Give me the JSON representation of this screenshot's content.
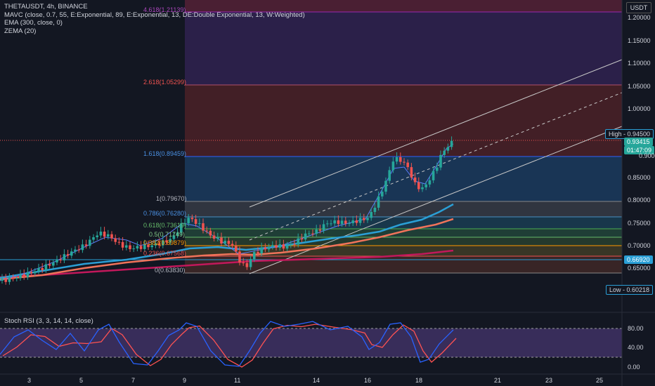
{
  "legend": {
    "symbol": "THETAUSDT, 4h, BINANCE",
    "mavc": "MAVC (close, 0.7, 55, E:Exponential, 89, E:Exponential, 13, DE:Double Exponential, 13, W:Weighted)",
    "ema": "EMA (300, close, 0)",
    "zema": "ZEMA (20)"
  },
  "stoch_legend": "Stoch RSI (3, 3, 14, 14, close)",
  "currency": "USDT",
  "price_axis": [
    "1.20000",
    "1.15000",
    "1.10000",
    "1.05000",
    "1.00000",
    "0.85000",
    "0.80000",
    "0.75000",
    "0.70000",
    "0.65000"
  ],
  "stoch_axis": [
    "80.00",
    "40.00",
    "0.00"
  ],
  "time_axis": [
    "3",
    "5",
    "7",
    "9",
    "11",
    "14",
    "16",
    "18",
    "21",
    "23",
    "25"
  ],
  "tags": {
    "high": "High - 0.94500",
    "last": "0.93415",
    "countdown": "01:47:09",
    "partial": "0.90000",
    "ema_val": "0.66920",
    "low": "Low - 0.60218"
  },
  "fib": {
    "f4236": "4.618(1.21139)",
    "f2618": "2.618(1.05299)",
    "f1618": "1.618(0.89459)",
    "f1": "1(0.79670)",
    "f786": "0.786(0.76280)",
    "f618": "0.618(0.73619)",
    "f5": "0.5(0.71749)",
    "f382": "0.382(0.69879)",
    "f236": "0.236(0.67568)",
    "f0": "0(0.63830)"
  },
  "colors": {
    "background": "#131722",
    "up": "#26a69a",
    "down": "#ef5350",
    "ema_line": "#2a9fd6",
    "zema_line": "#f0735a",
    "ema300": "#c2185b",
    "stoch_k": "#2962ff",
    "stoch_d": "#ff5252",
    "stoch_band": "#7e57c2"
  }
}
